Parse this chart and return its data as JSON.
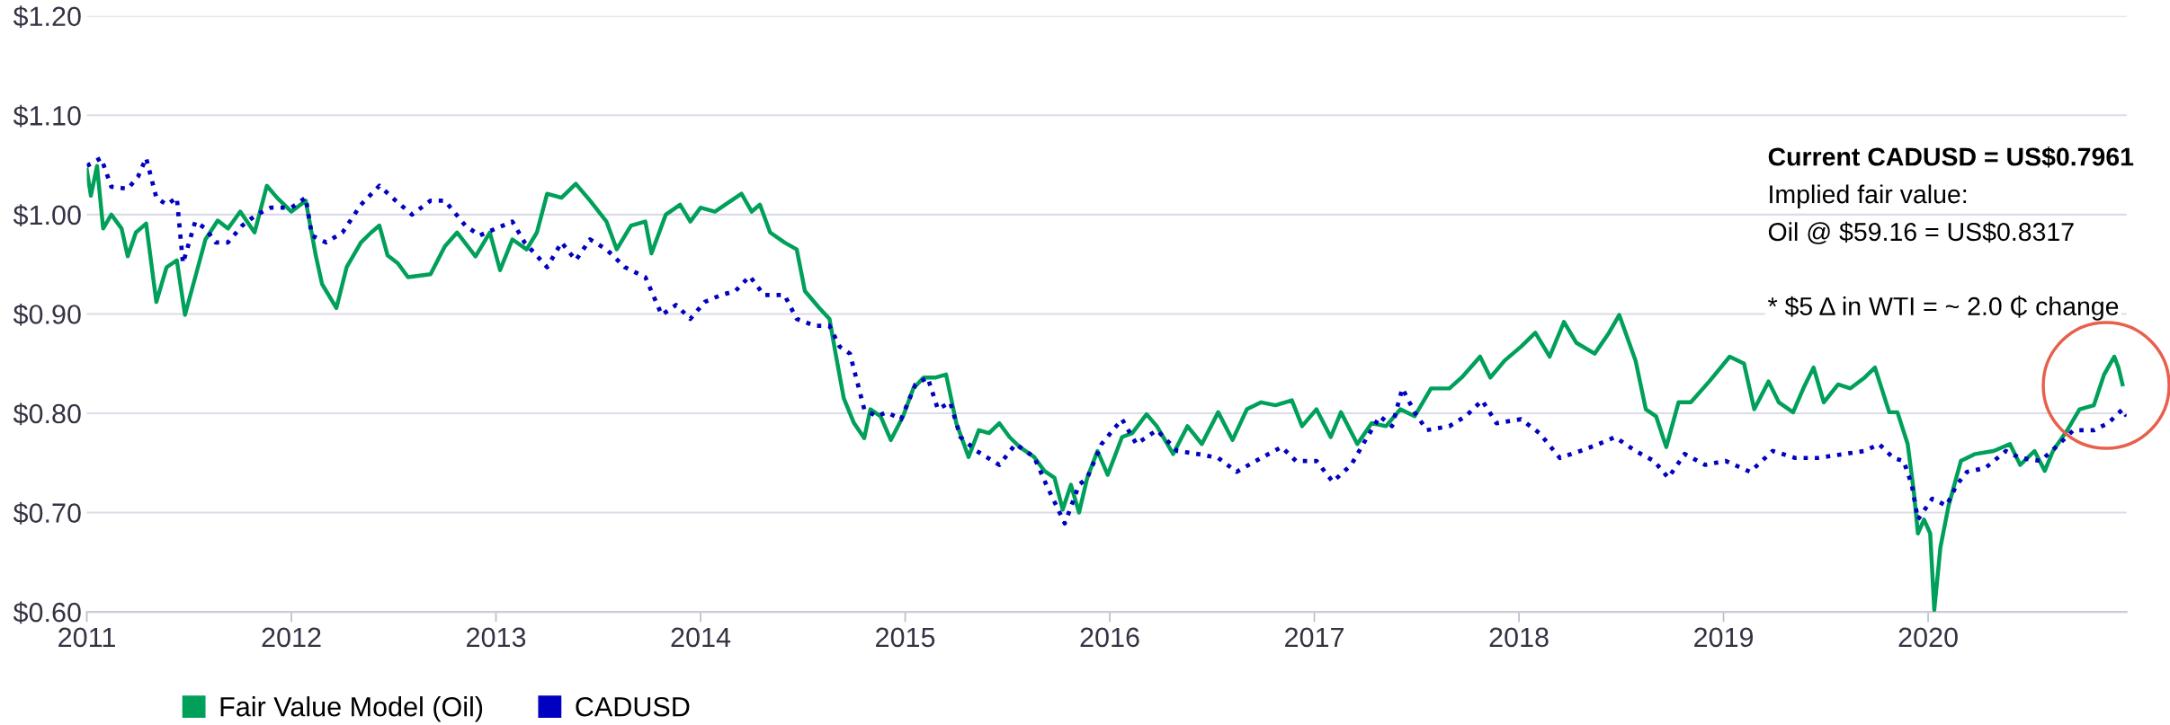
{
  "chart_data": {
    "type": "line",
    "xlim": [
      2011,
      2020.97
    ],
    "xticks": [
      2011,
      2012,
      2013,
      2014,
      2015,
      2016,
      2017,
      2018,
      2019,
      2020
    ],
    "ylim": [
      0.6,
      1.2
    ],
    "yticks": [
      {
        "value": 0.6,
        "label": "$0.60"
      },
      {
        "value": 0.7,
        "label": "$0.70"
      },
      {
        "value": 0.8,
        "label": "$0.80"
      },
      {
        "value": 0.9,
        "label": "$0.90"
      },
      {
        "value": 1.0,
        "label": "$1.00"
      },
      {
        "value": 1.1,
        "label": "$1.10"
      },
      {
        "value": 1.2,
        "label": "$1.20"
      }
    ],
    "grid": "y",
    "legend": "bottom left",
    "annotations": [
      "Current CADUSD = US$0.7961",
      "Implied fair value:",
      "Oil @ $59.16 = US$0.8317",
      "* $5 Δ in WTI = ~ 2.0 ₵ change"
    ],
    "series": [
      {
        "name": "Fair Value Model (Oil)",
        "color": "#00a05a",
        "line_style": "solid",
        "x": [
          2011.0,
          2011.02,
          2011.05,
          2011.08,
          2011.12,
          2011.17,
          2011.2,
          2011.24,
          2011.29,
          2011.34,
          2011.39,
          2011.44,
          2011.48,
          2011.53,
          2011.58,
          2011.64,
          2011.69,
          2011.75,
          2011.82,
          2011.88,
          2011.93,
          2012.0,
          2012.07,
          2012.12,
          2012.15,
          2012.22,
          2012.27,
          2012.34,
          2012.39,
          2012.43,
          2012.47,
          2012.52,
          2012.57,
          2012.68,
          2012.75,
          2012.81,
          2012.9,
          2012.97,
          2013.02,
          2013.08,
          2013.15,
          2013.2,
          2013.25,
          2013.32,
          2013.39,
          2013.46,
          2013.54,
          2013.59,
          2013.66,
          2013.73,
          2013.76,
          2013.83,
          2013.9,
          2013.95,
          2014.0,
          2014.07,
          2014.12,
          2014.2,
          2014.25,
          2014.29,
          2014.34,
          2014.41,
          2014.47,
          2014.51,
          2014.58,
          2014.63,
          2014.66,
          2014.7,
          2014.75,
          2014.8,
          2014.83,
          2014.88,
          2014.93,
          2014.99,
          2015.04,
          2015.09,
          2015.15,
          2015.2,
          2015.25,
          2015.31,
          2015.36,
          2015.41,
          2015.46,
          2015.51,
          2015.56,
          2015.63,
          2015.68,
          2015.73,
          2015.77,
          2015.81,
          2015.85,
          2015.89,
          2015.94,
          2015.99,
          2016.06,
          2016.11,
          2016.18,
          2016.23,
          2016.31,
          2016.38,
          2016.45,
          2016.53,
          2016.6,
          2016.67,
          2016.74,
          2016.81,
          2016.89,
          2016.94,
          2017.01,
          2017.08,
          2017.13,
          2017.21,
          2017.28,
          2017.35,
          2017.42,
          2017.49,
          2017.57,
          2017.66,
          2017.72,
          2017.81,
          2017.86,
          2017.93,
          2018.01,
          2018.08,
          2018.15,
          2018.22,
          2018.28,
          2018.37,
          2018.44,
          2018.49,
          2018.57,
          2018.62,
          2018.67,
          2018.72,
          2018.78,
          2018.84,
          2018.93,
          2019.03,
          2019.1,
          2019.15,
          2019.22,
          2019.27,
          2019.34,
          2019.39,
          2019.44,
          2019.49,
          2019.56,
          2019.62,
          2019.69,
          2019.74,
          2019.81,
          2019.85,
          2019.9,
          2019.93,
          2019.95,
          2019.98,
          2020.01,
          2020.03,
          2020.06,
          2020.1,
          2020.16,
          2020.23,
          2020.32,
          2020.4,
          2020.45,
          2020.52,
          2020.57,
          2020.61,
          2020.68,
          2020.74,
          2020.81,
          2020.86,
          2020.91,
          2020.93,
          2020.95
        ],
        "values": [
          1.045,
          1.019,
          1.049,
          0.986,
          1.0,
          0.986,
          0.958,
          0.982,
          0.991,
          0.912,
          0.947,
          0.954,
          0.899,
          0.937,
          0.975,
          0.994,
          0.986,
          1.003,
          0.982,
          1.029,
          1.017,
          1.003,
          1.014,
          0.958,
          0.93,
          0.906,
          0.947,
          0.972,
          0.982,
          0.989,
          0.959,
          0.951,
          0.937,
          0.94,
          0.968,
          0.982,
          0.958,
          0.982,
          0.944,
          0.975,
          0.965,
          0.982,
          1.021,
          1.017,
          1.031,
          1.014,
          0.993,
          0.965,
          0.989,
          0.993,
          0.961,
          1.0,
          1.01,
          0.993,
          1.007,
          1.003,
          1.01,
          1.021,
          1.003,
          1.01,
          0.982,
          0.972,
          0.965,
          0.923,
          0.906,
          0.895,
          0.86,
          0.815,
          0.79,
          0.775,
          0.804,
          0.797,
          0.773,
          0.797,
          0.825,
          0.836,
          0.836,
          0.839,
          0.79,
          0.756,
          0.783,
          0.78,
          0.79,
          0.776,
          0.766,
          0.756,
          0.742,
          0.735,
          0.703,
          0.728,
          0.7,
          0.735,
          0.762,
          0.738,
          0.776,
          0.78,
          0.799,
          0.787,
          0.759,
          0.787,
          0.769,
          0.801,
          0.773,
          0.804,
          0.811,
          0.808,
          0.813,
          0.787,
          0.804,
          0.776,
          0.801,
          0.769,
          0.79,
          0.787,
          0.804,
          0.797,
          0.825,
          0.825,
          0.836,
          0.857,
          0.836,
          0.853,
          0.867,
          0.881,
          0.857,
          0.892,
          0.871,
          0.86,
          0.881,
          0.899,
          0.853,
          0.804,
          0.797,
          0.766,
          0.811,
          0.811,
          0.832,
          0.857,
          0.85,
          0.804,
          0.832,
          0.811,
          0.801,
          0.825,
          0.846,
          0.811,
          0.829,
          0.825,
          0.836,
          0.846,
          0.801,
          0.801,
          0.769,
          0.721,
          0.679,
          0.693,
          0.679,
          0.602,
          0.665,
          0.707,
          0.752,
          0.759,
          0.762,
          0.769,
          0.748,
          0.762,
          0.742,
          0.762,
          0.783,
          0.804,
          0.808,
          0.839,
          0.857,
          0.846,
          0.829
        ]
      },
      {
        "name": "CADUSD",
        "color": "#0000c0",
        "line_style": "dotted",
        "x": [
          2011.0,
          2011.07,
          2011.12,
          2011.2,
          2011.25,
          2011.29,
          2011.34,
          2011.39,
          2011.44,
          2011.47,
          2011.53,
          2011.58,
          2011.63,
          2011.69,
          2011.76,
          2011.83,
          2011.9,
          2012.0,
          2012.07,
          2012.1,
          2012.17,
          2012.25,
          2012.34,
          2012.43,
          2012.51,
          2012.59,
          2012.68,
          2012.75,
          2012.85,
          2012.92,
          2013.0,
          2013.08,
          2013.14,
          2013.22,
          2013.25,
          2013.32,
          2013.39,
          2013.46,
          2013.54,
          2013.63,
          2013.73,
          2013.81,
          2013.88,
          2013.95,
          2014.02,
          2014.1,
          2014.17,
          2014.24,
          2014.31,
          2014.41,
          2014.47,
          2014.56,
          2014.63,
          2014.68,
          2014.73,
          2014.76,
          2014.8,
          2014.86,
          2014.91,
          2014.98,
          2015.05,
          2015.11,
          2015.16,
          2015.22,
          2015.27,
          2015.35,
          2015.46,
          2015.54,
          2015.63,
          2015.69,
          2015.78,
          2015.85,
          2015.89,
          2015.96,
          2016.06,
          2016.13,
          2016.23,
          2016.33,
          2016.43,
          2016.53,
          2016.62,
          2016.74,
          2016.84,
          2016.91,
          2017.01,
          2017.09,
          2017.18,
          2017.25,
          2017.32,
          2017.38,
          2017.43,
          2017.49,
          2017.55,
          2017.66,
          2017.74,
          2017.82,
          2017.89,
          2018.01,
          2018.1,
          2018.2,
          2018.3,
          2018.39,
          2018.47,
          2018.57,
          2018.66,
          2018.73,
          2018.81,
          2018.91,
          2019.01,
          2019.13,
          2019.24,
          2019.35,
          2019.46,
          2019.59,
          2019.69,
          2019.76,
          2019.83,
          2019.88,
          2019.92,
          2019.95,
          2020.02,
          2020.09,
          2020.14,
          2020.19,
          2020.28,
          2020.38,
          2020.45,
          2020.55,
          2020.64,
          2020.71,
          2020.81,
          2020.88,
          2020.95,
          2020.97
        ],
        "values": [
          1.049,
          1.057,
          1.028,
          1.026,
          1.038,
          1.057,
          1.017,
          1.01,
          1.017,
          0.951,
          0.993,
          0.986,
          0.972,
          0.972,
          0.989,
          1.0,
          1.007,
          1.007,
          1.017,
          0.979,
          0.972,
          0.982,
          1.01,
          1.029,
          1.014,
          1.0,
          1.014,
          1.014,
          0.989,
          0.979,
          0.986,
          0.993,
          0.972,
          0.954,
          0.947,
          0.972,
          0.954,
          0.975,
          0.965,
          0.947,
          0.937,
          0.899,
          0.909,
          0.895,
          0.912,
          0.919,
          0.923,
          0.938,
          0.919,
          0.919,
          0.895,
          0.888,
          0.888,
          0.867,
          0.86,
          0.836,
          0.804,
          0.797,
          0.801,
          0.794,
          0.829,
          0.836,
          0.804,
          0.811,
          0.776,
          0.762,
          0.748,
          0.769,
          0.756,
          0.728,
          0.689,
          0.728,
          0.735,
          0.769,
          0.794,
          0.769,
          0.783,
          0.762,
          0.759,
          0.755,
          0.741,
          0.755,
          0.766,
          0.752,
          0.752,
          0.731,
          0.748,
          0.773,
          0.797,
          0.787,
          0.825,
          0.801,
          0.783,
          0.787,
          0.797,
          0.813,
          0.79,
          0.794,
          0.78,
          0.755,
          0.762,
          0.769,
          0.776,
          0.762,
          0.752,
          0.735,
          0.759,
          0.748,
          0.752,
          0.741,
          0.762,
          0.755,
          0.755,
          0.759,
          0.762,
          0.769,
          0.755,
          0.752,
          0.728,
          0.693,
          0.714,
          0.707,
          0.728,
          0.741,
          0.745,
          0.762,
          0.755,
          0.752,
          0.769,
          0.783,
          0.783,
          0.79,
          0.804,
          0.797
        ]
      }
    ]
  }
}
